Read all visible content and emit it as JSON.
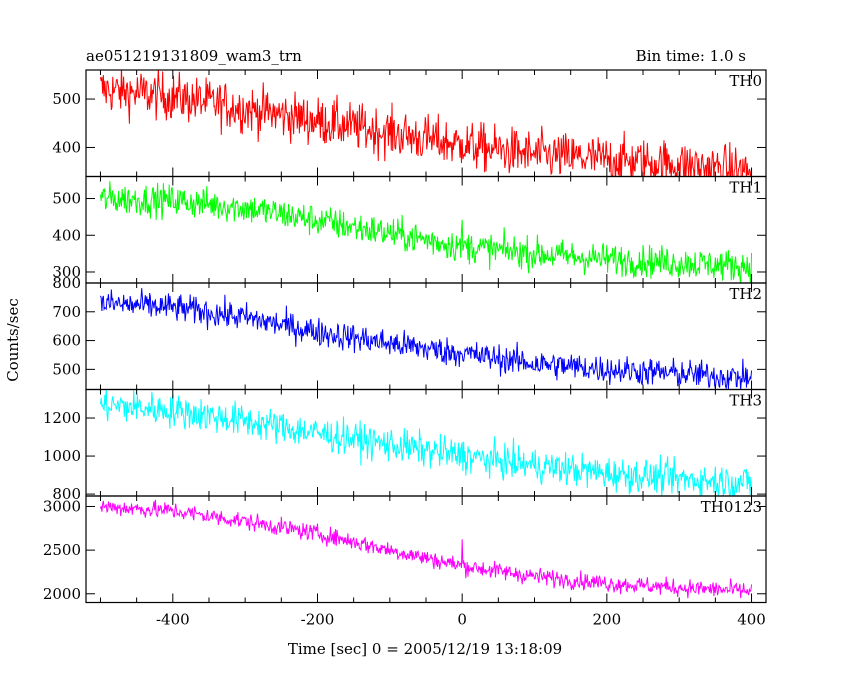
{
  "chart_data": {
    "type": "line",
    "title_left": "ae051219131809_wam3_trn",
    "title_right": "Bin time: 1.0 s",
    "xlabel": "Time [sec] 0 = 2005/12/19 13:18:09",
    "ylabel": "Counts/sec",
    "xlim": [
      -520,
      420
    ],
    "x_ticks": [
      -400,
      -200,
      0,
      200,
      400
    ],
    "x_range_data": [
      -500,
      400
    ],
    "spike_x": 0,
    "panels": [
      {
        "name": "TH0",
        "color": "#ff0000",
        "ylim": [
          340,
          560
        ],
        "y_ticks": [
          400,
          500
        ],
        "trend": [
          [
            -500,
            520
          ],
          [
            -400,
            505
          ],
          [
            -300,
            480
          ],
          [
            -200,
            455
          ],
          [
            -100,
            430
          ],
          [
            0,
            405
          ],
          [
            100,
            385
          ],
          [
            200,
            375
          ],
          [
            300,
            365
          ],
          [
            400,
            350
          ]
        ],
        "noise": 25,
        "spike": 50
      },
      {
        "name": "TH1",
        "color": "#00ff00",
        "ylim": [
          270,
          560
        ],
        "y_ticks": [
          300,
          400,
          500
        ],
        "trend": [
          [
            -500,
            500
          ],
          [
            -400,
            495
          ],
          [
            -300,
            475
          ],
          [
            -200,
            440
          ],
          [
            -100,
            405
          ],
          [
            0,
            370
          ],
          [
            100,
            350
          ],
          [
            200,
            335
          ],
          [
            300,
            325
          ],
          [
            400,
            315
          ]
        ],
        "noise": 22,
        "spike": 60
      },
      {
        "name": "TH2",
        "color": "#0000ff",
        "ylim": [
          430,
          800
        ],
        "y_ticks": [
          500,
          600,
          700,
          800
        ],
        "trend": [
          [
            -500,
            730
          ],
          [
            -400,
            715
          ],
          [
            -300,
            680
          ],
          [
            -200,
            630
          ],
          [
            -100,
            590
          ],
          [
            0,
            555
          ],
          [
            100,
            520
          ],
          [
            200,
            500
          ],
          [
            300,
            485
          ],
          [
            400,
            470
          ]
        ],
        "noise": 25,
        "spike": 40
      },
      {
        "name": "TH3",
        "color": "#00ffff",
        "ylim": [
          790,
          1350
        ],
        "y_ticks": [
          800,
          1000,
          1200
        ],
        "trend": [
          [
            -500,
            1270
          ],
          [
            -400,
            1240
          ],
          [
            -300,
            1185
          ],
          [
            -200,
            1120
          ],
          [
            -100,
            1060
          ],
          [
            0,
            1000
          ],
          [
            100,
            950
          ],
          [
            200,
            910
          ],
          [
            300,
            880
          ],
          [
            400,
            860
          ]
        ],
        "noise": 45,
        "spike": 120
      },
      {
        "name": "TH0123",
        "color": "#ff00ff",
        "ylim": [
          1900,
          3120
        ],
        "y_ticks": [
          2000,
          2500,
          3000
        ],
        "trend": [
          [
            -500,
            3000
          ],
          [
            -400,
            2950
          ],
          [
            -300,
            2830
          ],
          [
            -200,
            2690
          ],
          [
            -100,
            2500
          ],
          [
            0,
            2320
          ],
          [
            100,
            2200
          ],
          [
            200,
            2120
          ],
          [
            300,
            2070
          ],
          [
            400,
            2030
          ]
        ],
        "noise": 50,
        "spike": 300
      }
    ]
  }
}
